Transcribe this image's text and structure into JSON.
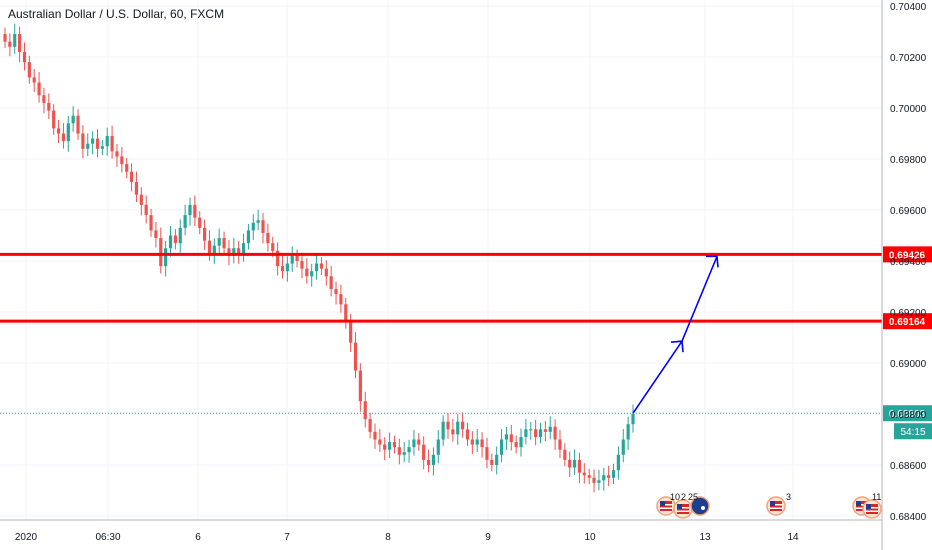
{
  "chart_data": {
    "type": "candlestick",
    "title": "Australian Dollar / U.S. Dollar, 60, FXCM",
    "y_axis": {
      "ylim": [
        0.684,
        0.704
      ],
      "ticks": [
        "0.70400",
        "0.70200",
        "0.70000",
        "0.69800",
        "0.69600",
        "0.69400",
        "0.69200",
        "0.69000",
        "0.68800",
        "0.68600",
        "0.68400"
      ],
      "position": "right"
    },
    "x_axis": {
      "ticks": [
        "2020",
        "06:30",
        "6",
        "7",
        "8",
        "9",
        "10",
        "13",
        "14"
      ]
    },
    "grid": true,
    "horizontal_levels": [
      {
        "value": 0.69426,
        "label": "0.69426",
        "color": "#ff0000"
      },
      {
        "value": 0.69164,
        "label": "0.69164",
        "color": "#ff0000"
      }
    ],
    "last_price": {
      "value": 0.68803,
      "label": "0.68803",
      "countdown": "54:15",
      "color": "#26a69a"
    },
    "candle_colors": {
      "up": "#26a69a",
      "down": "#ef5350"
    },
    "projection_arrow_color": "#0000ff",
    "event_markers": [
      {
        "count": "10",
        "extra": "2",
        "extra2": "25"
      },
      {
        "count": "3"
      },
      {
        "count": "11"
      }
    ],
    "approx_closes": [
      0.7026,
      0.7024,
      0.7029,
      0.7022,
      0.7018,
      0.7012,
      0.701,
      0.7005,
      0.7002,
      0.6999,
      0.6992,
      0.699,
      0.6987,
      0.6994,
      0.6997,
      0.699,
      0.6984,
      0.6986,
      0.6988,
      0.6984,
      0.6985,
      0.6989,
      0.6983,
      0.6981,
      0.6978,
      0.6975,
      0.6971,
      0.6966,
      0.6962,
      0.6958,
      0.6952,
      0.6949,
      0.6938,
      0.6945,
      0.695,
      0.6947,
      0.6953,
      0.6958,
      0.6962,
      0.6957,
      0.6953,
      0.6948,
      0.6943,
      0.6946,
      0.6949,
      0.6945,
      0.6942,
      0.6945,
      0.6943,
      0.6947,
      0.6952,
      0.6955,
      0.6956,
      0.6951,
      0.6947,
      0.6944,
      0.6938,
      0.6936,
      0.6939,
      0.6942,
      0.694,
      0.6937,
      0.6934,
      0.6936,
      0.6939,
      0.6937,
      0.6934,
      0.6929,
      0.6927,
      0.6923,
      0.6916,
      0.6908,
      0.6897,
      0.6885,
      0.6878,
      0.6873,
      0.687,
      0.6868,
      0.6866,
      0.6869,
      0.6867,
      0.6864,
      0.6865,
      0.6867,
      0.687,
      0.6868,
      0.6862,
      0.686,
      0.6864,
      0.687,
      0.6877,
      0.6874,
      0.6872,
      0.6877,
      0.6874,
      0.687,
      0.6868,
      0.687,
      0.6867,
      0.6862,
      0.686,
      0.6864,
      0.687,
      0.6872,
      0.6869,
      0.6867,
      0.6871,
      0.6874,
      0.6874,
      0.6871,
      0.6874,
      0.6873,
      0.6875,
      0.687,
      0.6866,
      0.6862,
      0.6859,
      0.6862,
      0.6857,
      0.6856,
      0.6855,
      0.6853,
      0.6854,
      0.6856,
      0.6855,
      0.6858,
      0.6864,
      0.687,
      0.6876,
      0.688
    ]
  }
}
